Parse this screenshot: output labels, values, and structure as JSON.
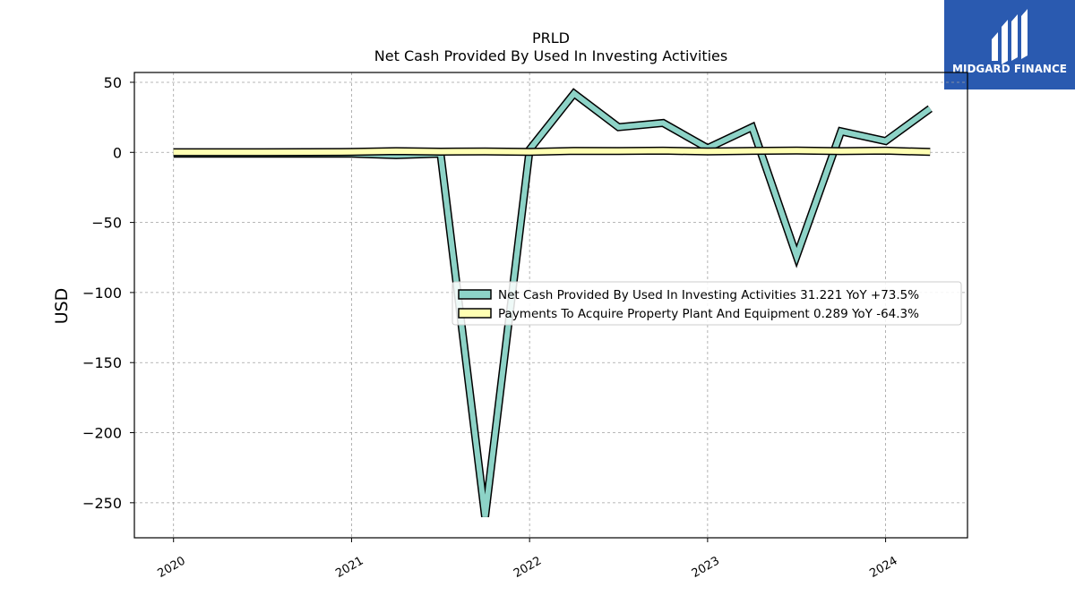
{
  "logo": {
    "text": "MIDGARD FINANCE",
    "bg_color": "#2a5ab0"
  },
  "chart_data": {
    "type": "line",
    "title": "PRLD",
    "subtitle": "Net Cash Provided By Used In Investing Activities",
    "ylabel": "USD",
    "xlabel": "",
    "ylim": [
      -275,
      57
    ],
    "xlim": [
      2019.78,
      2024.46
    ],
    "yticks": [
      50,
      0,
      -50,
      -100,
      -150,
      -200,
      -250
    ],
    "ytick_labels": [
      "50",
      "0",
      "−50",
      "−100",
      "−150",
      "−200",
      "−250"
    ],
    "xticks": [
      2020,
      2021,
      2022,
      2023,
      2024
    ],
    "xtick_labels": [
      "2020",
      "2021",
      "2022",
      "2023",
      "2024"
    ],
    "grid": true,
    "legend_position": "center-right",
    "series": [
      {
        "name": "Net Cash Provided By Used In Investing Activities",
        "legend_label": "Net Cash Provided By Used In Investing Activities  31.221 YoY +73.5%",
        "color": "#8dd3c7",
        "x": [
          2020.0,
          2020.25,
          2020.5,
          2020.75,
          2021.0,
          2021.25,
          2021.5,
          2021.75,
          2022.0,
          2022.25,
          2022.5,
          2022.75,
          2023.0,
          2023.25,
          2023.5,
          2023.75,
          2024.0,
          2024.25
        ],
        "values": [
          -1,
          -1,
          -1,
          -1,
          -1,
          -2,
          -1,
          -260,
          2,
          42,
          18,
          21,
          3,
          18,
          -74,
          15,
          8,
          31.221
        ]
      },
      {
        "name": "Payments To Acquire Property Plant And Equipment",
        "legend_label": "Payments To Acquire Property Plant And Equipment  0.289 YoY -64.3%",
        "color": "#ffffb3",
        "x": [
          2020.0,
          2020.25,
          2020.5,
          2020.75,
          2021.0,
          2021.25,
          2021.5,
          2021.75,
          2022.0,
          2022.25,
          2022.5,
          2022.75,
          2023.0,
          2023.25,
          2023.5,
          2023.75,
          2024.0,
          2024.25
        ],
        "values": [
          0.1,
          0.1,
          0.1,
          0.2,
          0.3,
          0.9,
          0.5,
          0.6,
          0.3,
          1.1,
          1.0,
          1.2,
          0.6,
          1.1,
          1.3,
          0.9,
          1.2,
          0.289
        ]
      }
    ]
  }
}
